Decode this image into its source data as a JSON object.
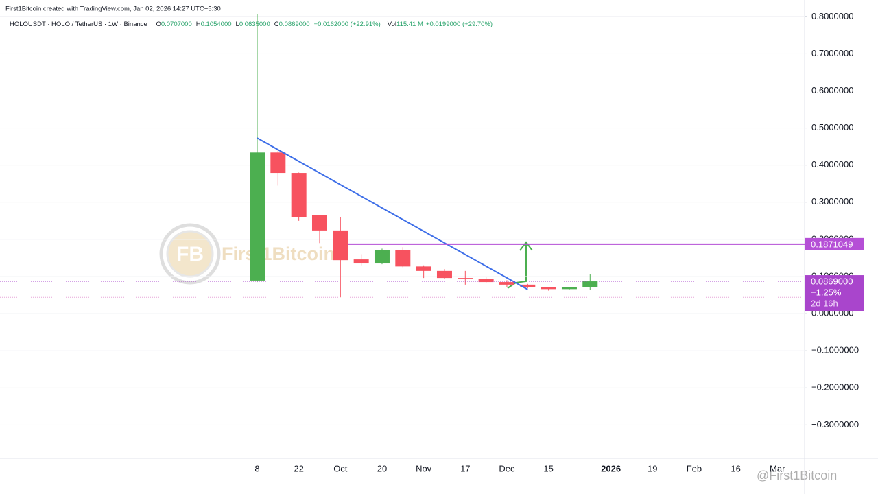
{
  "chart_data": {
    "type": "candlestick",
    "title": "First1Bitcoin created with TradingView.com, Jan 02, 2026 14:27 UTC+5:30",
    "subtitle": "HOLOUSDT · HOLO / TetherUS · 1W · Binance",
    "legend_values": [
      {
        "label": "O",
        "value": "0.0707000"
      },
      {
        "label": "H",
        "value": "0.1054000"
      },
      {
        "label": "L",
        "value": "0.0635000"
      },
      {
        "label": "C",
        "value": "0.0869000"
      }
    ],
    "change": "+0.0162000 (+22.91%)",
    "volume": {
      "label": "Vol",
      "value": "115.41 M",
      "change": "+0.0199000 (+29.70%)"
    },
    "categories": [
      "8",
      null,
      "22",
      null,
      "Oct",
      null,
      "20",
      null,
      "Nov",
      null,
      "17",
      null,
      "Dec",
      null,
      "15",
      null,
      null,
      "2026",
      null,
      "19",
      null,
      "Feb",
      null,
      "16",
      null,
      "Mar"
    ],
    "open": [
      0.089,
      0.434,
      0.379,
      0.266,
      0.224,
      0.146,
      0.135,
      0.172,
      0.127,
      0.115,
      0.096,
      0.094,
      0.085,
      0.078,
      0.071,
      0.066,
      0.0707,
      null,
      null,
      null,
      null,
      null,
      null,
      null,
      null,
      null
    ],
    "high": [
      0.807,
      0.44,
      0.38,
      0.266,
      0.259,
      0.16,
      0.175,
      0.179,
      0.13,
      0.12,
      0.115,
      0.098,
      0.09,
      0.08,
      0.072,
      0.072,
      0.1054,
      null,
      null,
      null,
      null,
      null,
      null,
      null,
      null,
      null
    ],
    "low": [
      0.085,
      0.345,
      0.25,
      0.19,
      0.044,
      0.13,
      0.133,
      0.125,
      0.096,
      0.094,
      0.078,
      0.083,
      0.072,
      0.068,
      0.062,
      0.064,
      0.0635,
      null,
      null,
      null,
      null,
      null,
      null,
      null,
      null,
      null
    ],
    "close": [
      0.434,
      0.379,
      0.26,
      0.224,
      0.144,
      0.135,
      0.172,
      0.127,
      0.115,
      0.096,
      0.094,
      0.085,
      0.078,
      0.071,
      0.066,
      0.0707,
      0.0869,
      null,
      null,
      null,
      null,
      null,
      null,
      null,
      null,
      null
    ],
    "up_color": "#4caf50",
    "down_color": "#f7525f",
    "ylim": [
      -0.39,
      0.845
    ],
    "yticks": [
      {
        "value": -0.3,
        "label": "−0.3000000"
      },
      {
        "value": -0.2,
        "label": "−0.2000000"
      },
      {
        "value": -0.1,
        "label": "−0.1000000"
      },
      {
        "value": 0,
        "label": "0.0000000"
      },
      {
        "value": 0.1,
        "label": "0.1000000"
      },
      {
        "value": 0.2,
        "label": "0.2000000"
      },
      {
        "value": 0.3,
        "label": "0.3000000"
      },
      {
        "value": 0.4,
        "label": "0.4000000"
      },
      {
        "value": 0.5,
        "label": "0.5000000"
      },
      {
        "value": 0.6,
        "label": "0.6000000"
      },
      {
        "value": 0.7,
        "label": "0.7000000"
      },
      {
        "value": 0.8,
        "label": "0.8000000"
      }
    ],
    "grid": true,
    "trendline": {
      "start": 0.473,
      "end": 0.065,
      "color": "#3d6ee8"
    },
    "level_line": {
      "value": 0.1871049,
      "label": "0.1871049",
      "color": "#b54fd6"
    },
    "last_price": {
      "value": 0.0869,
      "label": "0.0869000",
      "change": "−1.25%",
      "countdown": "2d 16h",
      "color": "#a945cc"
    },
    "low_line": 0.044,
    "watermarks": [
      "First1Bitcoin",
      "@First1Bitcoin"
    ]
  }
}
